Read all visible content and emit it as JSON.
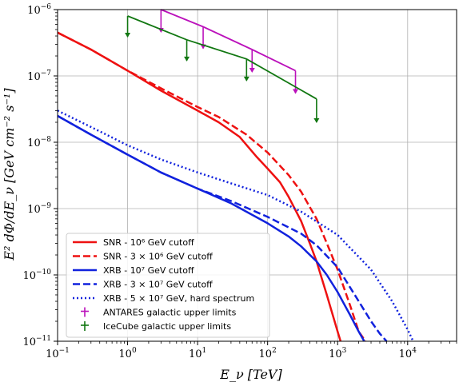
{
  "chart_data": {
    "type": "line",
    "title": "",
    "xlabel": "E_ν [TeV]",
    "ylabel": "E² dΦ/dE_ν [GeV cm⁻² s⁻¹]",
    "x_scale": "log",
    "y_scale": "log",
    "xlim": [
      0.1,
      50000
    ],
    "ylim": [
      1e-11,
      1e-06
    ],
    "grid": true,
    "legend_position": "lower-left",
    "x_ticks": [
      {
        "value": 0.1,
        "mant": "10",
        "exp": "−1"
      },
      {
        "value": 1,
        "mant": "10",
        "exp": "0"
      },
      {
        "value": 10,
        "mant": "10",
        "exp": "1"
      },
      {
        "value": 100,
        "mant": "10",
        "exp": "2"
      },
      {
        "value": 1000,
        "mant": "10",
        "exp": "3"
      },
      {
        "value": 10000,
        "mant": "10",
        "exp": "4"
      }
    ],
    "y_ticks": [
      {
        "value": 1e-11,
        "mant": "10",
        "exp": "−11"
      },
      {
        "value": 1e-10,
        "mant": "10",
        "exp": "−10"
      },
      {
        "value": 1e-09,
        "mant": "10",
        "exp": "−9"
      },
      {
        "value": 1e-08,
        "mant": "10",
        "exp": "−8"
      },
      {
        "value": 1e-07,
        "mant": "10",
        "exp": "−7"
      },
      {
        "value": 1e-06,
        "mant": "10",
        "exp": "−6"
      }
    ],
    "series": [
      {
        "name": "SNR - 10⁶ GeV cutoff",
        "color": "#ee1111",
        "style": "solid",
        "x": [
          0.1,
          0.3,
          1,
          3,
          10,
          20,
          40,
          70,
          100,
          150,
          200,
          300,
          400,
          500,
          700,
          1000,
          1100
        ],
        "y": [
          4.5e-07,
          2.5e-07,
          1.2e-07,
          6e-08,
          3e-08,
          2e-08,
          1.2e-08,
          6e-09,
          4e-09,
          2.5e-09,
          1.5e-09,
          6.5e-10,
          3e-10,
          1.6e-10,
          5e-11,
          1.4e-11,
          1e-11
        ]
      },
      {
        "name": "SNR - 3 × 10⁶ GeV cutoff",
        "color": "#ee1111",
        "style": "dashed",
        "x": [
          0.1,
          0.3,
          1,
          3,
          10,
          20,
          50,
          100,
          200,
          300,
          500,
          700,
          1000,
          1500,
          2000,
          2500
        ],
        "y": [
          4.5e-07,
          2.5e-07,
          1.2e-07,
          6.5e-08,
          3.4e-08,
          2.4e-08,
          1.3e-08,
          7e-09,
          3.2e-09,
          1.8e-09,
          7e-10,
          3e-10,
          1.2e-10,
          3.5e-11,
          1.4e-11,
          1e-11
        ]
      },
      {
        "name": "XRB - 10⁷ GeV cutoff",
        "color": "#1122dd",
        "style": "solid",
        "x": [
          0.1,
          0.3,
          1,
          3,
          10,
          30,
          100,
          200,
          300,
          500,
          700,
          1000,
          1500,
          2000,
          2400
        ],
        "y": [
          2.5e-08,
          1.3e-08,
          6.5e-09,
          3.5e-09,
          2e-09,
          1.2e-09,
          6e-10,
          3.8e-10,
          2.7e-10,
          1.6e-10,
          1e-10,
          5.5e-11,
          2.5e-11,
          1.4e-11,
          1e-11
        ]
      },
      {
        "name": "XRB - 3 × 10⁷ GeV cutoff",
        "color": "#1122dd",
        "style": "dashed",
        "x": [
          0.1,
          0.3,
          1,
          3,
          10,
          30,
          100,
          200,
          300,
          500,
          1000,
          2000,
          3000,
          4000,
          5000
        ],
        "y": [
          2.5e-08,
          1.3e-08,
          6.5e-09,
          3.5e-09,
          2e-09,
          1.3e-09,
          7.5e-10,
          5.2e-10,
          4.2e-10,
          2.8e-10,
          1.3e-10,
          4e-11,
          2e-11,
          1.3e-11,
          1e-11
        ]
      },
      {
        "name": "XRB - 5 × 10⁷ GeV, hard spectrum",
        "color": "#1122dd",
        "style": "dotted",
        "x": [
          0.1,
          0.3,
          1,
          3,
          10,
          30,
          100,
          300,
          1000,
          3000,
          6000,
          10000,
          12000
        ],
        "y": [
          3e-08,
          1.7e-08,
          9e-09,
          5.5e-09,
          3.5e-09,
          2.4e-09,
          1.6e-09,
          9e-10,
          4e-10,
          1.2e-10,
          4e-11,
          1.5e-11,
          1e-11
        ]
      }
    ],
    "upper_limits": [
      {
        "name": "ANTARES galactic upper limits",
        "color": "#bb11bb",
        "x": [
          3,
          12,
          60,
          250
        ],
        "y": [
          1e-06,
          5.5e-07,
          2.5e-07,
          1.2e-07
        ],
        "y_arrow_end": [
          4.6e-07,
          2.6e-07,
          1.15e-07,
          5.5e-08
        ]
      },
      {
        "name": "IceCube galactic upper limits",
        "color": "#117711",
        "x": [
          1,
          7,
          50,
          500
        ],
        "y": [
          8e-07,
          3.5e-07,
          1.8e-07,
          4.5e-08
        ],
        "y_arrow_end": [
          3.9e-07,
          1.7e-07,
          8.5e-08,
          2e-08
        ]
      }
    ],
    "legend": [
      "SNR - 10⁶ GeV cutoff",
      "SNR - 3 × 10⁶ GeV cutoff",
      "XRB - 10⁷ GeV cutoff",
      "XRB - 3 × 10⁷ GeV cutoff",
      "XRB - 5 × 10⁷ GeV, hard spectrum",
      "ANTARES galactic upper limits",
      "IceCube galactic upper limits"
    ]
  }
}
